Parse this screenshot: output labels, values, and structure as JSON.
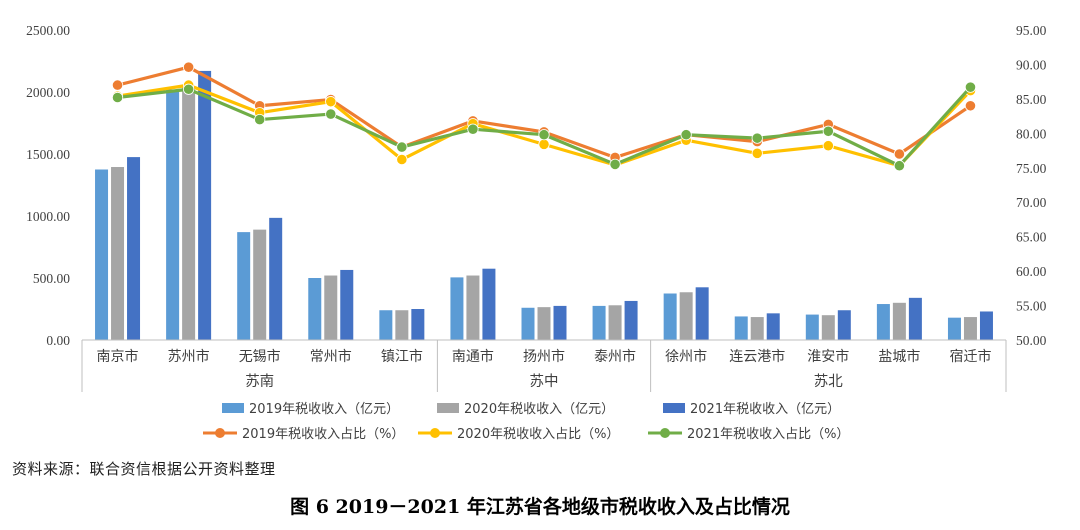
{
  "chart_data": {
    "type": "bar+line",
    "categories": [
      "南京市",
      "苏州市",
      "无锡市",
      "常州市",
      "镇江市",
      "南通市",
      "扬州市",
      "泰州市",
      "徐州市",
      "连云港市",
      "淮安市",
      "盐城市",
      "宿迁市"
    ],
    "groups": [
      {
        "label": "苏南",
        "from": 0,
        "to": 4
      },
      {
        "label": "苏中",
        "from": 5,
        "to": 7
      },
      {
        "label": "苏北",
        "from": 8,
        "to": 12
      }
    ],
    "bar_series": [
      {
        "name": "2019年税收收入（亿元）",
        "color": "#5B9BD5",
        "values": [
          1375,
          2020,
          870,
          500,
          240,
          505,
          260,
          275,
          375,
          190,
          205,
          290,
          180
        ]
      },
      {
        "name": "2020年税收收入（亿元）",
        "color": "#A5A5A5",
        "values": [
          1395,
          2040,
          890,
          520,
          240,
          520,
          265,
          280,
          385,
          185,
          200,
          300,
          185
        ]
      },
      {
        "name": "2021年税收收入（亿元）",
        "color": "#4472C4",
        "values": [
          1475,
          2170,
          985,
          565,
          250,
          575,
          275,
          315,
          425,
          215,
          240,
          340,
          230
        ]
      }
    ],
    "line_series": [
      {
        "name": "2019年税收收入占比（%）",
        "color": "#ED7D31",
        "values": [
          87.0,
          89.6,
          84.0,
          84.9,
          78.0,
          81.8,
          80.2,
          76.5,
          79.8,
          78.8,
          81.3,
          77.0,
          84.0
        ]
      },
      {
        "name": "2020年税收收入占比（%）",
        "color": "#FFC000",
        "values": [
          85.4,
          87.0,
          83.0,
          84.6,
          76.2,
          81.4,
          78.4,
          75.4,
          79.0,
          77.1,
          78.2,
          75.3,
          86.2
        ]
      },
      {
        "name": "2021年税收收入占比（%）",
        "color": "#70AD47",
        "values": [
          85.2,
          86.4,
          82.0,
          82.8,
          78.0,
          80.6,
          79.8,
          75.5,
          79.8,
          79.3,
          80.3,
          75.3,
          86.7
        ]
      }
    ],
    "y_left": {
      "min": 0,
      "max": 2500,
      "ticks": [
        "0.00",
        "500.00",
        "1000.00",
        "1500.00",
        "2000.00",
        "2500.00"
      ]
    },
    "y_right": {
      "min": 50,
      "max": 95,
      "ticks": [
        "50.00",
        "55.00",
        "60.00",
        "65.00",
        "70.00",
        "75.00",
        "80.00",
        "85.00",
        "90.00",
        "95.00"
      ]
    },
    "legend": {
      "position": "bottom"
    }
  },
  "source_note": "资料来源：联合资信根据公开资料整理",
  "caption": "图 6   2019－2021 年江苏省各地级市税收收入及占比情况"
}
